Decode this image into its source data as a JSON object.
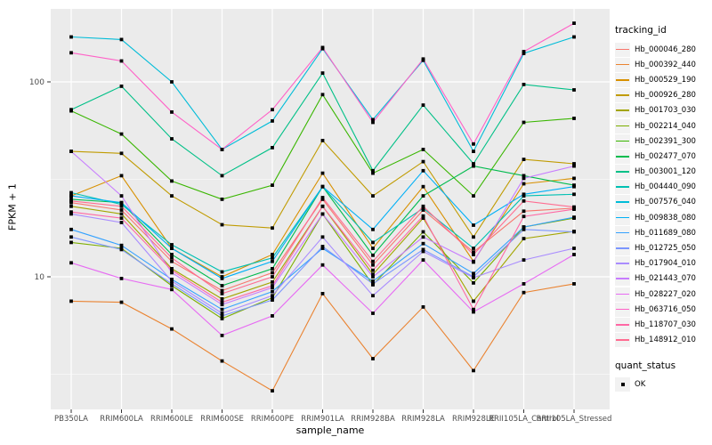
{
  "y_axis": {
    "title": "FPKM + 1",
    "ticks": [
      {
        "label": "100",
        "value": 100
      },
      {
        "label": "10",
        "value": 10
      }
    ]
  },
  "x_axis": {
    "title": "sample_name"
  },
  "legend": {
    "color_title": "tracking_id",
    "shape_title": "quant_status",
    "shape_items": [
      {
        "label": "OK"
      }
    ]
  },
  "style": {
    "panel_bg": "#EBEBEB",
    "grid_color": "#FFFFFF",
    "tick_color": "#333333",
    "tick_label_color": "#4D4D4D",
    "marker_color": "#000000",
    "legend_key_bg": "#F2F2F2"
  },
  "chart_data": {
    "type": "line",
    "y_scale": "log10",
    "ylim": [
      2.1,
      237
    ],
    "grid": "on",
    "legend_position": "right",
    "marker_shape": "square",
    "categories": [
      "PB350LA",
      "RRIM600LA",
      "RRIM600LE",
      "RRIM600SE",
      "RRIM600PE",
      "RRIM901LA",
      "RRIM928BA",
      "RRIM928LA",
      "RRIM928LE",
      "RRII105LA_Control",
      "RRII105LA_Stressed"
    ],
    "minor_gridline_values": [
      31.623,
      3.1623
    ],
    "series": [
      {
        "name": "Hb_000046_280",
        "color": "#F8766D",
        "values": [
          24,
          22,
          12,
          8.5,
          10.5,
          25,
          11.5,
          22,
          13.4,
          21.7,
          22.5
        ]
      },
      {
        "name": "Hb_000392_440",
        "color": "#EA8331",
        "values": [
          7.5,
          7.4,
          5.4,
          3.7,
          2.6,
          8.2,
          3.8,
          7.0,
          3.3,
          8.3,
          9.2
        ]
      },
      {
        "name": "Hb_000529_190",
        "color": "#D89000",
        "values": [
          26,
          33,
          14,
          10,
          13,
          34,
          14,
          29,
          12,
          30,
          32
        ]
      },
      {
        "name": "Hb_000926_280",
        "color": "#C09B00",
        "values": [
          44,
          43,
          26,
          18.5,
          17.8,
          50,
          26,
          39,
          16,
          40,
          38
        ]
      },
      {
        "name": "Hb_001703_030",
        "color": "#A3A500",
        "values": [
          23,
          21,
          11,
          7.7,
          9.4,
          23,
          10.3,
          20,
          7.5,
          15.7,
          17.1
        ]
      },
      {
        "name": "Hb_002214_040",
        "color": "#7CAE00",
        "values": [
          15,
          14,
          9,
          6.1,
          7.8,
          21,
          9.1,
          17,
          9.3,
          18,
          20
        ]
      },
      {
        "name": "Hb_002391_300",
        "color": "#39B600",
        "values": [
          71,
          54,
          31,
          25,
          29.5,
          86,
          34,
          45,
          26,
          62,
          65
        ]
      },
      {
        "name": "Hb_002477_070",
        "color": "#00BB4E",
        "values": [
          25,
          24,
          13,
          9,
          11,
          29,
          12.9,
          26,
          37,
          33,
          29.5
        ]
      },
      {
        "name": "Hb_003001_120",
        "color": "#00C087",
        "values": [
          72,
          95,
          51,
          33,
          46,
          111,
          35,
          76,
          38,
          97,
          91
        ]
      },
      {
        "name": "Hb_004440_090",
        "color": "#00C0B2",
        "values": [
          27,
          23.5,
          14.6,
          10.6,
          12.5,
          29,
          15,
          22.5,
          14,
          26,
          26.5
        ]
      },
      {
        "name": "Hb_007576_040",
        "color": "#00BCD8",
        "values": [
          170,
          165,
          100,
          45,
          63,
          148,
          64,
          129,
          44,
          140,
          170
        ]
      },
      {
        "name": "Hb_009838_080",
        "color": "#00B0F6",
        "values": [
          26,
          24,
          14,
          9.8,
          12,
          29,
          17.5,
          35,
          18.4,
          26.5,
          29
        ]
      },
      {
        "name": "Hb_011689_080",
        "color": "#35A2FF",
        "values": [
          17.5,
          14.5,
          9.7,
          6.8,
          8.4,
          14,
          9.5,
          14.8,
          10.4,
          18,
          20.2
        ]
      },
      {
        "name": "Hb_012725_050",
        "color": "#7C96FF",
        "values": [
          16,
          13.8,
          9.2,
          6.3,
          7.6,
          14.3,
          9.2,
          13.8,
          10,
          17.5,
          17
        ]
      },
      {
        "name": "Hb_017904_010",
        "color": "#A98CFF",
        "values": [
          21,
          19,
          9.5,
          6.5,
          8,
          16,
          8,
          13.5,
          9.9,
          12.2,
          14
        ]
      },
      {
        "name": "Hb_021443_070",
        "color": "#C77CFF",
        "values": [
          44,
          26,
          10.5,
          7.2,
          8.8,
          21,
          10,
          16,
          11.9,
          32,
          37
        ]
      },
      {
        "name": "Hb_028227_020",
        "color": "#E76BF3",
        "values": [
          11.8,
          9.8,
          8.6,
          5.0,
          6.3,
          11.5,
          6.5,
          12.2,
          6.6,
          9.2,
          13
        ]
      },
      {
        "name": "Hb_063716_050",
        "color": "#FF61C7",
        "values": [
          141,
          128,
          70,
          45,
          72,
          150,
          62,
          131,
          48,
          143,
          200
        ]
      },
      {
        "name": "Hb_118707_030",
        "color": "#FF67A4",
        "values": [
          21.5,
          20,
          10.8,
          7.4,
          9,
          23,
          10.8,
          20.5,
          6.8,
          20.4,
          22.2
        ]
      },
      {
        "name": "Hb_148912_010",
        "color": "#FF6C91",
        "values": [
          24.5,
          23,
          12.5,
          8.2,
          10,
          25.5,
          12,
          23,
          13,
          24.5,
          22.8
        ]
      }
    ]
  }
}
